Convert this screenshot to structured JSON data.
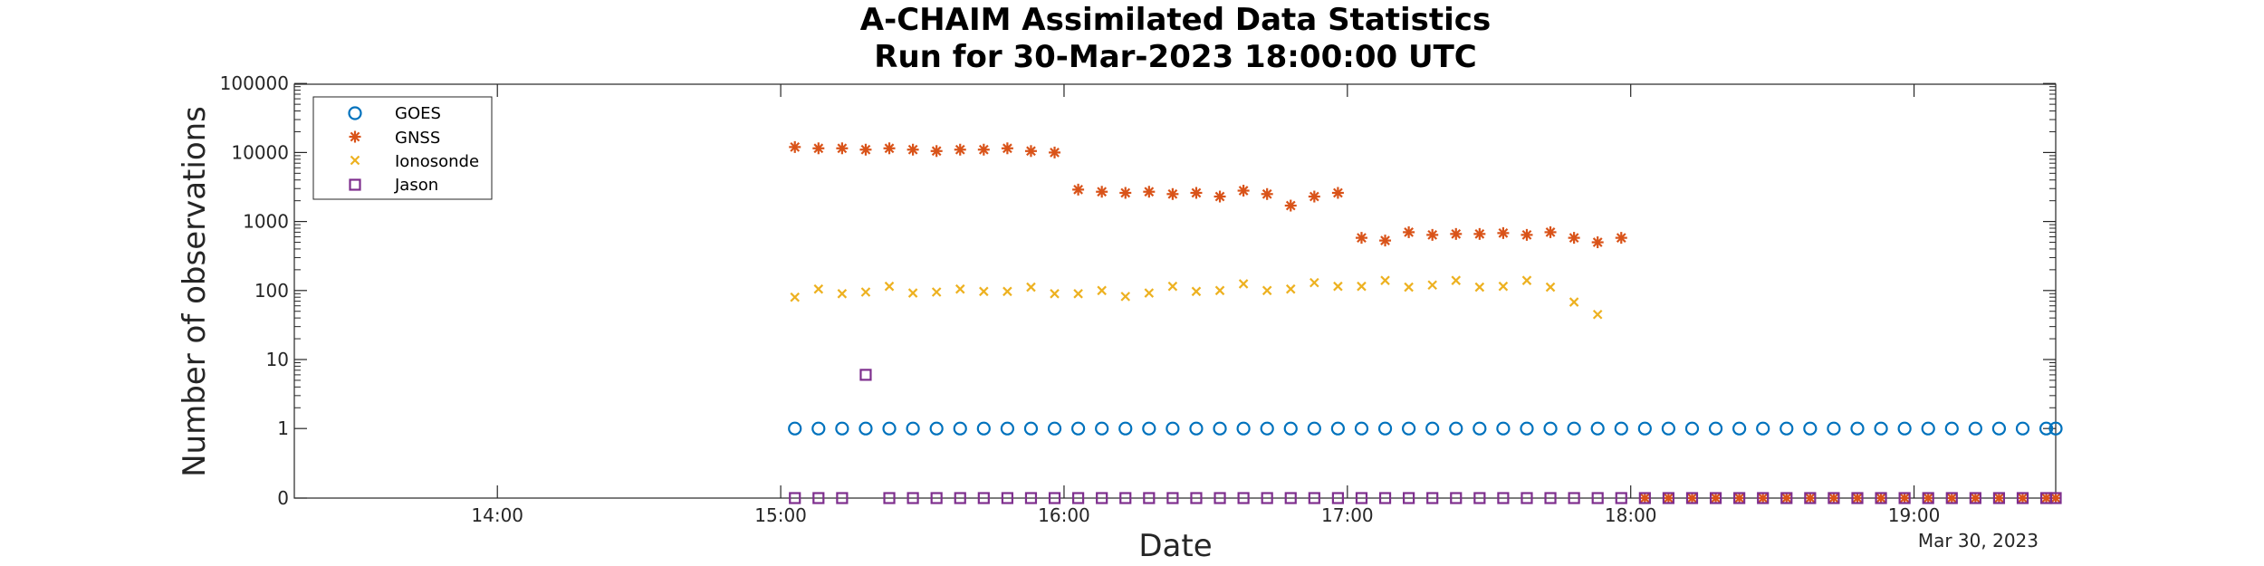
{
  "chart_data": {
    "type": "scatter",
    "title": [
      "A-CHAIM Assimilated Data Statistics",
      "Run for 30-Mar-2023 18:00:00 UTC"
    ],
    "xlabel": "Date",
    "ylabel": "Number of observations",
    "date_stamp": "Mar 30, 2023",
    "x_unit": "time (UTC, 30-Mar-2023)",
    "xlim": [
      "13:17",
      "19:30"
    ],
    "x_ticks": [
      "14:00",
      "15:00",
      "16:00",
      "17:00",
      "18:00",
      "19:00"
    ],
    "y_scale": "log",
    "y_ticks": [
      "0",
      "1",
      "10",
      "100",
      "1000",
      "10000",
      "100000"
    ],
    "grid": false,
    "legend_position": "top-left",
    "series": [
      {
        "name": "GOES",
        "marker": "circle",
        "color": "#0072BD",
        "points": [
          [
            "15:03",
            1
          ],
          [
            "15:08",
            1
          ],
          [
            "15:13",
            1
          ],
          [
            "15:18",
            1
          ],
          [
            "15:23",
            1
          ],
          [
            "15:28",
            1
          ],
          [
            "15:33",
            1
          ],
          [
            "15:38",
            1
          ],
          [
            "15:43",
            1
          ],
          [
            "15:48",
            1
          ],
          [
            "15:53",
            1
          ],
          [
            "15:58",
            1
          ],
          [
            "16:03",
            1
          ],
          [
            "16:08",
            1
          ],
          [
            "16:13",
            1
          ],
          [
            "16:18",
            1
          ],
          [
            "16:23",
            1
          ],
          [
            "16:28",
            1
          ],
          [
            "16:33",
            1
          ],
          [
            "16:38",
            1
          ],
          [
            "16:43",
            1
          ],
          [
            "16:48",
            1
          ],
          [
            "16:53",
            1
          ],
          [
            "16:58",
            1
          ],
          [
            "17:03",
            1
          ],
          [
            "17:08",
            1
          ],
          [
            "17:13",
            1
          ],
          [
            "17:18",
            1
          ],
          [
            "17:23",
            1
          ],
          [
            "17:28",
            1
          ],
          [
            "17:33",
            1
          ],
          [
            "17:38",
            1
          ],
          [
            "17:43",
            1
          ],
          [
            "17:48",
            1
          ],
          [
            "17:53",
            1
          ],
          [
            "17:58",
            1
          ],
          [
            "18:03",
            1
          ],
          [
            "18:08",
            1
          ],
          [
            "18:13",
            1
          ],
          [
            "18:18",
            1
          ],
          [
            "18:23",
            1
          ],
          [
            "18:28",
            1
          ],
          [
            "18:33",
            1
          ],
          [
            "18:38",
            1
          ],
          [
            "18:43",
            1
          ],
          [
            "18:48",
            1
          ],
          [
            "18:53",
            1
          ],
          [
            "18:58",
            1
          ],
          [
            "19:03",
            1
          ],
          [
            "19:08",
            1
          ],
          [
            "19:13",
            1
          ],
          [
            "19:18",
            1
          ],
          [
            "19:23",
            1
          ],
          [
            "19:28",
            1
          ],
          [
            "19:30",
            1
          ]
        ]
      },
      {
        "name": "GNSS",
        "marker": "asterisk",
        "color": "#D95319",
        "points": [
          [
            "15:03",
            12000
          ],
          [
            "15:08",
            11500
          ],
          [
            "15:13",
            11500
          ],
          [
            "15:18",
            11000
          ],
          [
            "15:23",
            11500
          ],
          [
            "15:28",
            11000
          ],
          [
            "15:33",
            10500
          ],
          [
            "15:38",
            11000
          ],
          [
            "15:43",
            11000
          ],
          [
            "15:48",
            11500
          ],
          [
            "15:53",
            10500
          ],
          [
            "15:58",
            10000
          ],
          [
            "16:03",
            2900
          ],
          [
            "16:08",
            2700
          ],
          [
            "16:13",
            2600
          ],
          [
            "16:18",
            2700
          ],
          [
            "16:23",
            2500
          ],
          [
            "16:28",
            2600
          ],
          [
            "16:33",
            2300
          ],
          [
            "16:38",
            2800
          ],
          [
            "16:43",
            2500
          ],
          [
            "16:48",
            1700
          ],
          [
            "16:53",
            2300
          ],
          [
            "16:58",
            2600
          ],
          [
            "17:03",
            580
          ],
          [
            "17:08",
            530
          ],
          [
            "17:13",
            700
          ],
          [
            "17:18",
            640
          ],
          [
            "17:23",
            660
          ],
          [
            "17:28",
            660
          ],
          [
            "17:33",
            680
          ],
          [
            "17:38",
            640
          ],
          [
            "17:43",
            700
          ],
          [
            "17:48",
            580
          ],
          [
            "17:53",
            500
          ],
          [
            "17:58",
            580
          ],
          [
            "18:03",
            0
          ],
          [
            "18:08",
            0
          ],
          [
            "18:13",
            0
          ],
          [
            "18:18",
            0
          ],
          [
            "18:23",
            0
          ],
          [
            "18:28",
            0
          ],
          [
            "18:33",
            0
          ],
          [
            "18:38",
            0
          ],
          [
            "18:43",
            0
          ],
          [
            "18:48",
            0
          ],
          [
            "18:53",
            0
          ],
          [
            "18:58",
            0
          ],
          [
            "19:03",
            0
          ],
          [
            "19:08",
            0
          ],
          [
            "19:13",
            0
          ],
          [
            "19:18",
            0
          ],
          [
            "19:23",
            0
          ],
          [
            "19:28",
            0
          ],
          [
            "19:30",
            0
          ]
        ]
      },
      {
        "name": "Ionosonde",
        "marker": "x",
        "color": "#EDB120",
        "points": [
          [
            "15:03",
            80
          ],
          [
            "15:08",
            105
          ],
          [
            "15:13",
            90
          ],
          [
            "15:18",
            95
          ],
          [
            "15:23",
            115
          ],
          [
            "15:28",
            92
          ],
          [
            "15:33",
            95
          ],
          [
            "15:38",
            105
          ],
          [
            "15:43",
            97
          ],
          [
            "15:48",
            97
          ],
          [
            "15:53",
            112
          ],
          [
            "15:58",
            90
          ],
          [
            "16:03",
            90
          ],
          [
            "16:08",
            100
          ],
          [
            "16:13",
            82
          ],
          [
            "16:18",
            92
          ],
          [
            "16:23",
            115
          ],
          [
            "16:28",
            97
          ],
          [
            "16:33",
            100
          ],
          [
            "16:38",
            125
          ],
          [
            "16:43",
            100
          ],
          [
            "16:48",
            105
          ],
          [
            "16:53",
            130
          ],
          [
            "16:58",
            115
          ],
          [
            "17:03",
            115
          ],
          [
            "17:08",
            140
          ],
          [
            "17:13",
            112
          ],
          [
            "17:18",
            120
          ],
          [
            "17:23",
            140
          ],
          [
            "17:28",
            112
          ],
          [
            "17:33",
            115
          ],
          [
            "17:38",
            140
          ],
          [
            "17:43",
            112
          ],
          [
            "17:48",
            68
          ],
          [
            "17:53",
            45
          ]
        ]
      },
      {
        "name": "Jason",
        "marker": "square",
        "color": "#7E2F8E",
        "points": [
          [
            "15:03",
            0
          ],
          [
            "15:08",
            0
          ],
          [
            "15:13",
            0
          ],
          [
            "15:18",
            6
          ],
          [
            "15:23",
            0
          ],
          [
            "15:28",
            0
          ],
          [
            "15:33",
            0
          ],
          [
            "15:38",
            0
          ],
          [
            "15:43",
            0
          ],
          [
            "15:48",
            0
          ],
          [
            "15:53",
            0
          ],
          [
            "15:58",
            0
          ],
          [
            "16:03",
            0
          ],
          [
            "16:08",
            0
          ],
          [
            "16:13",
            0
          ],
          [
            "16:18",
            0
          ],
          [
            "16:23",
            0
          ],
          [
            "16:28",
            0
          ],
          [
            "16:33",
            0
          ],
          [
            "16:38",
            0
          ],
          [
            "16:43",
            0
          ],
          [
            "16:48",
            0
          ],
          [
            "16:53",
            0
          ],
          [
            "16:58",
            0
          ],
          [
            "17:03",
            0
          ],
          [
            "17:08",
            0
          ],
          [
            "17:13",
            0
          ],
          [
            "17:18",
            0
          ],
          [
            "17:23",
            0
          ],
          [
            "17:28",
            0
          ],
          [
            "17:33",
            0
          ],
          [
            "17:38",
            0
          ],
          [
            "17:43",
            0
          ],
          [
            "17:48",
            0
          ],
          [
            "17:53",
            0
          ],
          [
            "17:58",
            0
          ],
          [
            "18:03",
            0
          ],
          [
            "18:08",
            0
          ],
          [
            "18:13",
            0
          ],
          [
            "18:18",
            0
          ],
          [
            "18:23",
            0
          ],
          [
            "18:28",
            0
          ],
          [
            "18:33",
            0
          ],
          [
            "18:38",
            0
          ],
          [
            "18:43",
            0
          ],
          [
            "18:48",
            0
          ],
          [
            "18:53",
            0
          ],
          [
            "18:58",
            0
          ],
          [
            "19:03",
            0
          ],
          [
            "19:08",
            0
          ],
          [
            "19:13",
            0
          ],
          [
            "19:18",
            0
          ],
          [
            "19:23",
            0
          ],
          [
            "19:28",
            0
          ],
          [
            "19:30",
            0
          ]
        ]
      }
    ]
  }
}
